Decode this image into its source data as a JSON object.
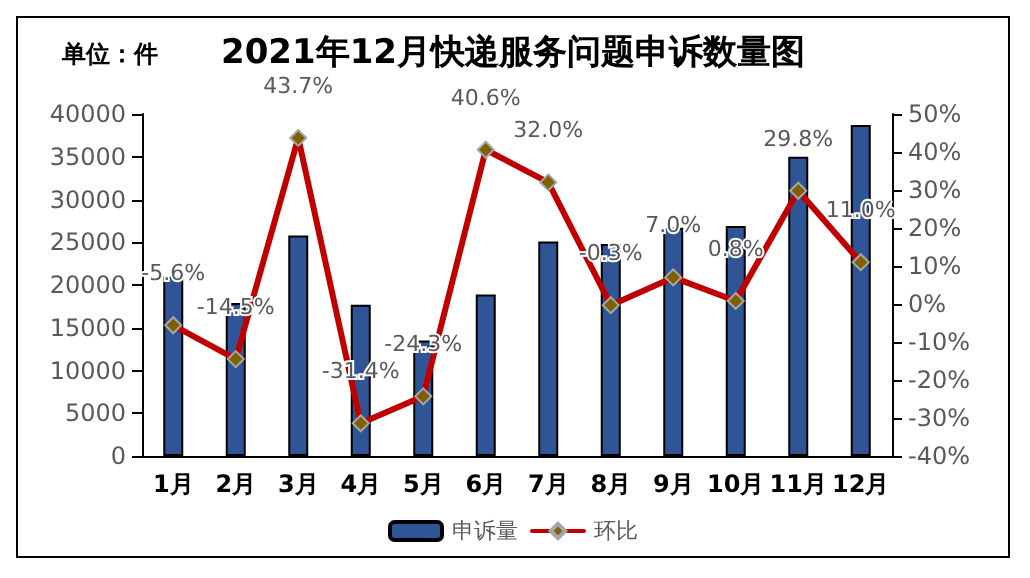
{
  "chart_data": {
    "type": "bar",
    "title": "2021年12月快递服务问题申诉数量图",
    "annotations": [
      "单位：件"
    ],
    "categories": [
      "1月",
      "2月",
      "3月",
      "4月",
      "5月",
      "6月",
      "7月",
      "8月",
      "9月",
      "10月",
      "11月",
      "12月"
    ],
    "series": [
      {
        "name": "申诉量",
        "color": "#2f5597",
        "values": [
          21000,
          17900,
          25800,
          17700,
          13500,
          18900,
          25100,
          24800,
          26700,
          26900,
          35000,
          38700
        ]
      },
      {
        "name": "环比",
        "type": "line",
        "axis": "y2",
        "color": "#c00000",
        "marker": "diamond",
        "values": [
          -5.6,
          -14.5,
          43.7,
          -31.4,
          -24.3,
          40.6,
          32.0,
          -0.3,
          7.0,
          0.8,
          29.8,
          11.0
        ],
        "value_labels": [
          "-5.6%",
          "-14.5%",
          "43.7%",
          "-31.4%",
          "-24.3%",
          "40.6%",
          "32.0%",
          "-0.3%",
          "7.0%",
          "0.8%",
          "29.8%",
          "11.0%"
        ]
      }
    ],
    "ylim": [
      0,
      40000
    ],
    "yticks": [
      0,
      5000,
      10000,
      15000,
      20000,
      25000,
      30000,
      35000,
      40000
    ],
    "y2lim": [
      -40,
      50
    ],
    "y2ticks": [
      {
        "value": -40,
        "label": "-40%"
      },
      {
        "value": -30,
        "label": "-30%"
      },
      {
        "value": -20,
        "label": "-20%"
      },
      {
        "value": -10,
        "label": "-10%"
      },
      {
        "value": 0,
        "label": "0%"
      },
      {
        "value": 10,
        "label": "10%"
      },
      {
        "value": 20,
        "label": "20%"
      },
      {
        "value": 30,
        "label": "30%"
      },
      {
        "value": 40,
        "label": "40%"
      },
      {
        "value": 50,
        "label": "50%"
      }
    ],
    "grid": false,
    "legend": "bottom"
  }
}
